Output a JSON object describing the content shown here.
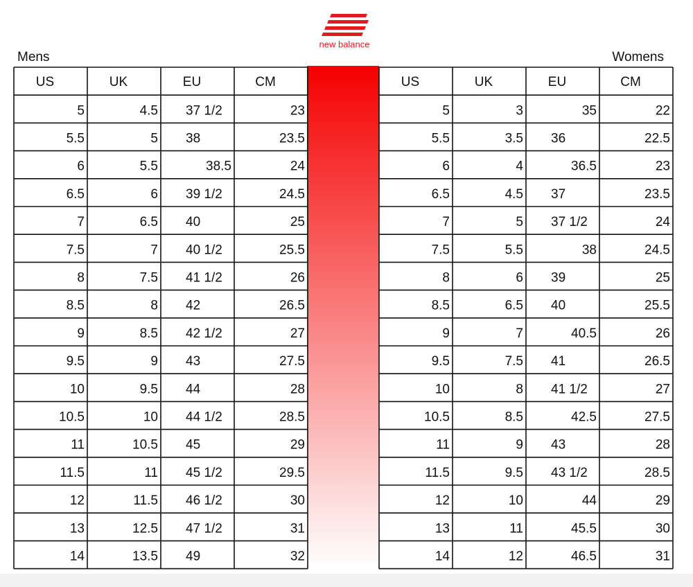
{
  "logo": {
    "text": "new balance"
  },
  "mens": {
    "title": "Mens",
    "headers": [
      "US",
      "UK",
      "EU",
      "CM"
    ],
    "rows": [
      [
        "5",
        "4.5",
        "37 1/2",
        "23"
      ],
      [
        "5.5",
        "5",
        "38",
        "23.5"
      ],
      [
        "6",
        "5.5",
        "38.5",
        "24"
      ],
      [
        "6.5",
        "6",
        "39 1/2",
        "24.5"
      ],
      [
        "7",
        "6.5",
        "40",
        "25"
      ],
      [
        "7.5",
        "7",
        "40 1/2",
        "25.5"
      ],
      [
        "8",
        "7.5",
        "41 1/2",
        "26"
      ],
      [
        "8.5",
        "8",
        "42",
        "26.5"
      ],
      [
        "9",
        "8.5",
        "42 1/2",
        "27"
      ],
      [
        "9.5",
        "9",
        "43",
        "27.5"
      ],
      [
        "10",
        "9.5",
        "44",
        "28"
      ],
      [
        "10.5",
        "10",
        "44 1/2",
        "28.5"
      ],
      [
        "11",
        "10.5",
        "45",
        "29"
      ],
      [
        "11.5",
        "11",
        "45 1/2",
        "29.5"
      ],
      [
        "12",
        "11.5",
        "46 1/2",
        "30"
      ],
      [
        "13",
        "12.5",
        "47 1/2",
        "31"
      ],
      [
        "14",
        "13.5",
        "49",
        "32"
      ]
    ]
  },
  "womens": {
    "title": "Womens",
    "headers": [
      "US",
      "UK",
      "EU",
      "CM"
    ],
    "rows": [
      [
        "5",
        "3",
        "35",
        "22"
      ],
      [
        "5.5",
        "3.5",
        "36",
        "22.5"
      ],
      [
        "6",
        "4",
        "36.5",
        "23"
      ],
      [
        "6.5",
        "4.5",
        "37",
        "23.5"
      ],
      [
        "7",
        "5",
        "37 1/2",
        "24"
      ],
      [
        "7.5",
        "5.5",
        "38",
        "24.5"
      ],
      [
        "8",
        "6",
        "39",
        "25"
      ],
      [
        "8.5",
        "6.5",
        "40",
        "25.5"
      ],
      [
        "9",
        "7",
        "40.5",
        "26"
      ],
      [
        "9.5",
        "7.5",
        "41",
        "26.5"
      ],
      [
        "10",
        "8",
        "41 1/2",
        "27"
      ],
      [
        "10.5",
        "8.5",
        "42.5",
        "27.5"
      ],
      [
        "11",
        "9",
        "43",
        "28"
      ],
      [
        "11.5",
        "9.5",
        "43 1/2",
        "28.5"
      ],
      [
        "12",
        "10",
        "44",
        "29"
      ],
      [
        "13",
        "11",
        "45.5",
        "30"
      ],
      [
        "14",
        "12",
        "46.5",
        "31"
      ]
    ]
  }
}
